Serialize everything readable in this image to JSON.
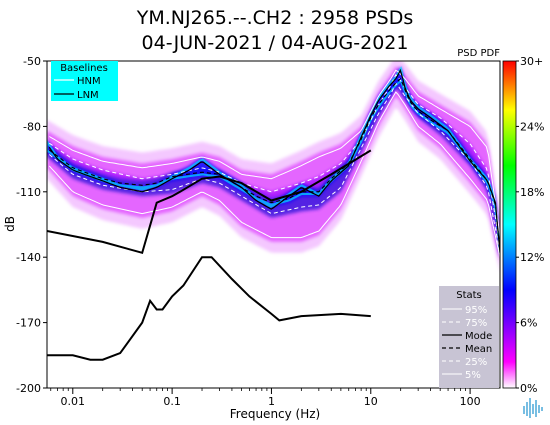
{
  "chart_data": {
    "type": "heatmap",
    "title_line1": "YM.NJ265.--.CH2 : 2958 PSDs",
    "title_line2": "04-JUN-2021 / 04-AUG-2021",
    "xlabel": "Frequency (Hz)",
    "ylabel": "dB",
    "x_scale": "log",
    "xlim": [
      0.0055,
      200
    ],
    "ylim": [
      -200,
      -50
    ],
    "x_ticks": [
      0.01,
      0.1,
      1,
      10,
      100
    ],
    "x_tick_labels": [
      "0.01",
      "0.1",
      "1",
      "10",
      "100"
    ],
    "y_ticks": [
      -50,
      -80,
      -110,
      -140,
      -170,
      -200
    ],
    "y_tick_labels": [
      "-50",
      "-80",
      "-110",
      "-140",
      "-170",
      "-200"
    ],
    "colorbar": {
      "label": "PSD PDF",
      "ticks": [
        0,
        6,
        12,
        18,
        24,
        30
      ],
      "tick_labels": [
        "0%",
        "6%",
        "12%",
        "18%",
        "24%",
        "30+"
      ],
      "colors": [
        "#ffffff",
        "#ff00ff",
        "#0000ff",
        "#00ffff",
        "#00ff00",
        "#ffff00",
        "#ff0000"
      ]
    },
    "baselines_legend": {
      "title": "Baselines",
      "items": [
        "HNM",
        "LNM"
      ]
    },
    "stats_legend": {
      "title": "Stats",
      "items": [
        "95%",
        "75%",
        "Mode",
        "Mean",
        "25%",
        "5%"
      ]
    },
    "nhnm": {
      "freq": [
        0.0055,
        0.02,
        0.05,
        0.07,
        0.1,
        0.12,
        0.2,
        0.3,
        0.5,
        1,
        2,
        4,
        10
      ],
      "db": [
        -128,
        -133,
        -138,
        -115,
        -112,
        -110,
        -104,
        -103,
        -106,
        -114,
        -110,
        -102,
        -91
      ]
    },
    "nlnm": {
      "freq": [
        0.0055,
        0.01,
        0.015,
        0.02,
        0.03,
        0.05,
        0.06,
        0.07,
        0.08,
        0.1,
        0.13,
        0.2,
        0.25,
        0.4,
        0.6,
        1,
        1.2,
        2,
        5,
        10
      ],
      "db": [
        -185,
        -185,
        -187,
        -187,
        -184,
        -170,
        -160,
        -164,
        -164,
        -158,
        -153,
        -140,
        -140,
        -150,
        -158,
        -166,
        -169,
        -167,
        -166,
        -167
      ]
    },
    "mode": {
      "freq": [
        0.0055,
        0.007,
        0.01,
        0.015,
        0.02,
        0.03,
        0.05,
        0.07,
        0.1,
        0.15,
        0.2,
        0.3,
        0.5,
        0.7,
        1,
        1.5,
        2,
        3,
        4,
        6,
        8,
        10,
        12,
        15,
        18,
        20,
        22,
        25,
        30,
        40,
        60,
        100,
        150,
        180,
        200
      ],
      "db": [
        -88,
        -95,
        -100,
        -103,
        -105,
        -108,
        -110,
        -108,
        -104,
        -100,
        -96,
        -102,
        -108,
        -114,
        -118,
        -112,
        -108,
        -112,
        -105,
        -98,
        -85,
        -75,
        -68,
        -62,
        -58,
        -54,
        -62,
        -68,
        -72,
        -76,
        -82,
        -96,
        -105,
        -115,
        -138
      ]
    },
    "mean": {
      "freq": [
        0.0055,
        0.01,
        0.02,
        0.03,
        0.05,
        0.07,
        0.1,
        0.2,
        0.3,
        0.5,
        0.7,
        1,
        1.5,
        2,
        3,
        4,
        6,
        8,
        10,
        12,
        15,
        18,
        20,
        22,
        25,
        30,
        40,
        60,
        100,
        150,
        180,
        200
      ],
      "db": [
        -90,
        -99,
        -104,
        -106,
        -107,
        -106,
        -103,
        -101,
        -102,
        -108,
        -112,
        -115,
        -113,
        -110,
        -110,
        -104,
        -97,
        -86,
        -76,
        -70,
        -64,
        -60,
        -58,
        -63,
        -69,
        -73,
        -77,
        -82,
        -95,
        -105,
        -116,
        -137
      ]
    },
    "p95": {
      "freq": [
        0.0055,
        0.01,
        0.02,
        0.05,
        0.1,
        0.2,
        0.3,
        0.5,
        1,
        2,
        3,
        5,
        8,
        12,
        16,
        18,
        22,
        30,
        50,
        100,
        150,
        200
      ],
      "db": [
        -84,
        -91,
        -96,
        -99,
        -97,
        -94,
        -96,
        -102,
        -104,
        -98,
        -94,
        -90,
        -82,
        -66,
        -58,
        -54,
        -58,
        -66,
        -72,
        -80,
        -90,
        -130
      ]
    },
    "p75": {
      "freq": [
        0.0055,
        0.01,
        0.02,
        0.05,
        0.1,
        0.2,
        0.3,
        0.5,
        1,
        2,
        3,
        5,
        8,
        12,
        16,
        18,
        22,
        30,
        50,
        100,
        150,
        200
      ],
      "db": [
        -87,
        -95,
        -100,
        -104,
        -102,
        -99,
        -101,
        -106,
        -110,
        -106,
        -103,
        -97,
        -86,
        -70,
        -61,
        -56,
        -62,
        -70,
        -76,
        -88,
        -100,
        -135
      ]
    },
    "p25": {
      "freq": [
        0.0055,
        0.01,
        0.02,
        0.05,
        0.1,
        0.2,
        0.3,
        0.5,
        1,
        2,
        3,
        5,
        8,
        12,
        16,
        18,
        22,
        30,
        50,
        100,
        150,
        200
      ],
      "db": [
        -92,
        -102,
        -107,
        -110,
        -109,
        -104,
        -106,
        -112,
        -120,
        -117,
        -116,
        -108,
        -90,
        -74,
        -65,
        -60,
        -66,
        -74,
        -82,
        -96,
        -108,
        -138
      ]
    },
    "p5": {
      "freq": [
        0.0055,
        0.01,
        0.02,
        0.05,
        0.1,
        0.2,
        0.3,
        0.5,
        1,
        2,
        3,
        5,
        8,
        12,
        16,
        18,
        22,
        30,
        50,
        100,
        150,
        200
      ],
      "db": [
        -97,
        -110,
        -116,
        -120,
        -117,
        -110,
        -114,
        -124,
        -131,
        -131,
        -128,
        -116,
        -96,
        -78,
        -68,
        -64,
        -70,
        -80,
        -88,
        -104,
        -114,
        -140
      ]
    }
  },
  "logo": {
    "icon": "waveform-logo-icon"
  }
}
